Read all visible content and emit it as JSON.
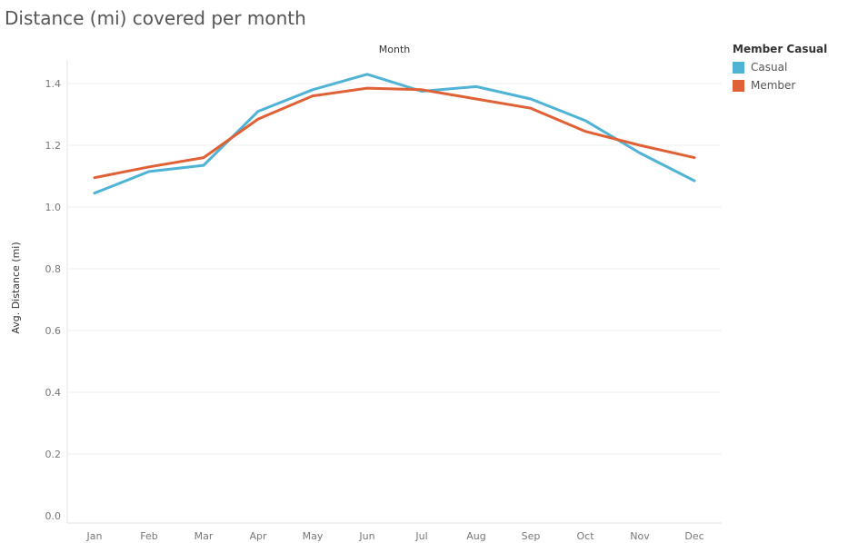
{
  "title": "Distance (mi) covered per month",
  "legend": {
    "title": "Member Casual",
    "items": [
      {
        "label": "Casual",
        "color": "#4fb3d6"
      },
      {
        "label": "Member",
        "color": "#e06136"
      }
    ]
  },
  "chart_data": {
    "type": "line",
    "title": "Distance (mi) covered per month",
    "xlabel": "Month",
    "ylabel": "Avg. Distance (mi)",
    "categories": [
      "Jan",
      "Feb",
      "Mar",
      "Apr",
      "May",
      "Jun",
      "Jul",
      "Aug",
      "Sep",
      "Oct",
      "Nov",
      "Dec"
    ],
    "ylim": [
      0,
      1.5
    ],
    "yticks": [
      0.0,
      0.2,
      0.4,
      0.6,
      0.8,
      1.0,
      1.2,
      1.4
    ],
    "ytick_labels": [
      "0.0",
      "0.2",
      "0.4",
      "0.6",
      "0.8",
      "1.0",
      "1.2",
      "1.4"
    ],
    "grid": true,
    "legend_position": "top-right",
    "series": [
      {
        "name": "Casual",
        "color": "#4fb3d6",
        "values": [
          1.045,
          1.115,
          1.135,
          1.31,
          1.38,
          1.43,
          1.375,
          1.39,
          1.35,
          1.28,
          1.175,
          1.085
        ]
      },
      {
        "name": "Member",
        "color": "#e06136",
        "values": [
          1.095,
          1.13,
          1.16,
          1.285,
          1.36,
          1.385,
          1.38,
          1.35,
          1.32,
          1.245,
          1.2,
          1.16
        ]
      }
    ]
  }
}
